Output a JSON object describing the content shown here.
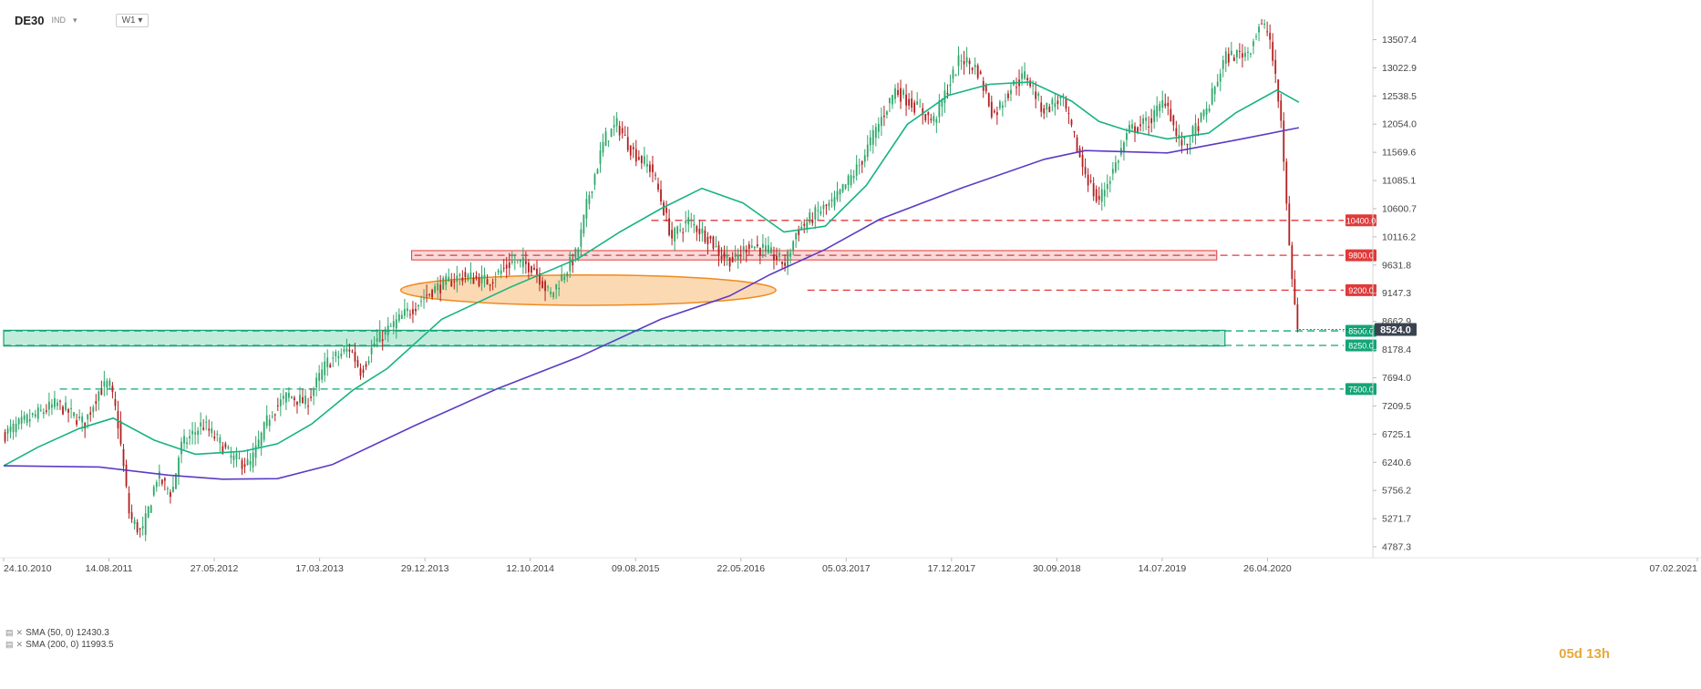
{
  "toolbar": {
    "symbol": "DE30",
    "symbol_type": "IND",
    "timeframe": "W1"
  },
  "legend": {
    "sma50_label": "SMA (50, 0) 12430.3",
    "sma200_label": "SMA (200, 0) 11993.5"
  },
  "countdown": "05d 13h",
  "colors": {
    "bull": "#2fa76a",
    "bear": "#b31f1f",
    "sma50": "#17b384",
    "sma200": "#5b3bc4",
    "resistance": "#e03a3a",
    "support": "#13a576",
    "zone_red_fill": "#f6c5c5",
    "zone_green_fill": "#b6e7d4",
    "ellipse_fill": "#f7b975",
    "ellipse_stroke": "#ef8a1e",
    "price_label": "#3b4350"
  },
  "chart_data": {
    "type": "candlestick",
    "title": "DE30",
    "timeframe": "W1",
    "x_range": [
      "24.10.2010",
      "07.02.2021"
    ],
    "x_ticks": [
      "24.10.2010",
      "14.08.2011",
      "27.05.2012",
      "17.03.2013",
      "29.12.2013",
      "12.10.2014",
      "09.08.2015",
      "22.05.2016",
      "05.03.2017",
      "17.12.2017",
      "30.09.2018",
      "14.07.2019",
      "26.04.2020",
      "07.02.2021"
    ],
    "y_range": [
      4787.3,
      13750
    ],
    "y_ticks": [
      13507.4,
      13022.9,
      12538.5,
      12054.0,
      11569.6,
      11085.1,
      10600.7,
      10116.2,
      9631.8,
      9147.3,
      8662.9,
      8178.4,
      7694.0,
      7209.5,
      6725.1,
      6240.6,
      5756.2,
      5271.7,
      4787.3
    ],
    "last_price": "8524.0",
    "price_path": [
      {
        "t": 0.0,
        "p": 6700
      },
      {
        "t": 0.02,
        "p": 7000
      },
      {
        "t": 0.04,
        "p": 7250
      },
      {
        "t": 0.06,
        "p": 6900
      },
      {
        "t": 0.07,
        "p": 7450
      },
      {
        "t": 0.078,
        "p": 7600
      },
      {
        "t": 0.084,
        "p": 7000
      },
      {
        "t": 0.093,
        "p": 5300
      },
      {
        "t": 0.102,
        "p": 5000
      },
      {
        "t": 0.113,
        "p": 6000
      },
      {
        "t": 0.124,
        "p": 5700
      },
      {
        "t": 0.13,
        "p": 6500
      },
      {
        "t": 0.146,
        "p": 6900
      },
      {
        "t": 0.158,
        "p": 6600
      },
      {
        "t": 0.168,
        "p": 6300
      },
      {
        "t": 0.181,
        "p": 6200
      },
      {
        "t": 0.196,
        "p": 7100
      },
      {
        "t": 0.209,
        "p": 7400
      },
      {
        "t": 0.222,
        "p": 7250
      },
      {
        "t": 0.237,
        "p": 7950
      },
      {
        "t": 0.254,
        "p": 8200
      },
      {
        "t": 0.262,
        "p": 7800
      },
      {
        "t": 0.272,
        "p": 8300
      },
      {
        "t": 0.29,
        "p": 8700
      },
      {
        "t": 0.314,
        "p": 9200
      },
      {
        "t": 0.335,
        "p": 9450
      },
      {
        "t": 0.355,
        "p": 9350
      },
      {
        "t": 0.373,
        "p": 9700
      },
      {
        "t": 0.388,
        "p": 9600
      },
      {
        "t": 0.4,
        "p": 9100
      },
      {
        "t": 0.412,
        "p": 9550
      },
      {
        "t": 0.42,
        "p": 9850
      },
      {
        "t": 0.428,
        "p": 10800
      },
      {
        "t": 0.44,
        "p": 11800
      },
      {
        "t": 0.449,
        "p": 12050
      },
      {
        "t": 0.46,
        "p": 11600
      },
      {
        "t": 0.475,
        "p": 11250
      },
      {
        "t": 0.489,
        "p": 10100
      },
      {
        "t": 0.501,
        "p": 10400
      },
      {
        "t": 0.516,
        "p": 10100
      },
      {
        "t": 0.525,
        "p": 9800
      },
      {
        "t": 0.535,
        "p": 9700
      },
      {
        "t": 0.545,
        "p": 10000
      },
      {
        "t": 0.556,
        "p": 9900
      },
      {
        "t": 0.572,
        "p": 9650
      },
      {
        "t": 0.58,
        "p": 10200
      },
      {
        "t": 0.596,
        "p": 10550
      },
      {
        "t": 0.607,
        "p": 10700
      },
      {
        "t": 0.626,
        "p": 11350
      },
      {
        "t": 0.64,
        "p": 12050
      },
      {
        "t": 0.652,
        "p": 12650
      },
      {
        "t": 0.665,
        "p": 12400
      },
      {
        "t": 0.68,
        "p": 12100
      },
      {
        "t": 0.7,
        "p": 13200
      },
      {
        "t": 0.712,
        "p": 13000
      },
      {
        "t": 0.724,
        "p": 12200
      },
      {
        "t": 0.737,
        "p": 12700
      },
      {
        "t": 0.748,
        "p": 12900
      },
      {
        "t": 0.76,
        "p": 12300
      },
      {
        "t": 0.774,
        "p": 12500
      },
      {
        "t": 0.788,
        "p": 11400
      },
      {
        "t": 0.8,
        "p": 10700
      },
      {
        "t": 0.812,
        "p": 11300
      },
      {
        "t": 0.823,
        "p": 11950
      },
      {
        "t": 0.838,
        "p": 12100
      },
      {
        "t": 0.85,
        "p": 12500
      },
      {
        "t": 0.858,
        "p": 11800
      },
      {
        "t": 0.865,
        "p": 11700
      },
      {
        "t": 0.872,
        "p": 12000
      },
      {
        "t": 0.88,
        "p": 12300
      },
      {
        "t": 0.893,
        "p": 13200
      },
      {
        "t": 0.91,
        "p": 13300
      },
      {
        "t": 0.918,
        "p": 13750
      },
      {
        "t": 0.925,
        "p": 13650
      },
      {
        "t": 0.934,
        "p": 12100
      },
      {
        "t": 0.941,
        "p": 9600
      },
      {
        "t": 0.946,
        "p": 8524
      }
    ],
    "series": [
      {
        "name": "SMA (50, 0) 12430.3",
        "points": [
          {
            "t": 0.0,
            "p": 6180
          },
          {
            "t": 0.025,
            "p": 6500
          },
          {
            "t": 0.055,
            "p": 6820
          },
          {
            "t": 0.08,
            "p": 7000
          },
          {
            "t": 0.11,
            "p": 6620
          },
          {
            "t": 0.14,
            "p": 6380
          },
          {
            "t": 0.175,
            "p": 6430
          },
          {
            "t": 0.2,
            "p": 6560
          },
          {
            "t": 0.225,
            "p": 6900
          },
          {
            "t": 0.255,
            "p": 7480
          },
          {
            "t": 0.28,
            "p": 7850
          },
          {
            "t": 0.32,
            "p": 8700
          },
          {
            "t": 0.37,
            "p": 9250
          },
          {
            "t": 0.42,
            "p": 9750
          },
          {
            "t": 0.45,
            "p": 10200
          },
          {
            "t": 0.48,
            "p": 10600
          },
          {
            "t": 0.51,
            "p": 10950
          },
          {
            "t": 0.54,
            "p": 10700
          },
          {
            "t": 0.57,
            "p": 10200
          },
          {
            "t": 0.6,
            "p": 10300
          },
          {
            "t": 0.63,
            "p": 11000
          },
          {
            "t": 0.66,
            "p": 12050
          },
          {
            "t": 0.69,
            "p": 12550
          },
          {
            "t": 0.72,
            "p": 12740
          },
          {
            "t": 0.75,
            "p": 12780
          },
          {
            "t": 0.78,
            "p": 12450
          },
          {
            "t": 0.8,
            "p": 12100
          },
          {
            "t": 0.82,
            "p": 11950
          },
          {
            "t": 0.85,
            "p": 11800
          },
          {
            "t": 0.88,
            "p": 11900
          },
          {
            "t": 0.9,
            "p": 12250
          },
          {
            "t": 0.93,
            "p": 12640
          },
          {
            "t": 0.946,
            "p": 12430
          }
        ]
      },
      {
        "name": "SMA (200, 0) 11993.5",
        "points": [
          {
            "t": 0.0,
            "p": 6180
          },
          {
            "t": 0.07,
            "p": 6160
          },
          {
            "t": 0.12,
            "p": 6020
          },
          {
            "t": 0.16,
            "p": 5950
          },
          {
            "t": 0.2,
            "p": 5960
          },
          {
            "t": 0.24,
            "p": 6200
          },
          {
            "t": 0.3,
            "p": 6870
          },
          {
            "t": 0.36,
            "p": 7500
          },
          {
            "t": 0.42,
            "p": 8050
          },
          {
            "t": 0.48,
            "p": 8700
          },
          {
            "t": 0.53,
            "p": 9100
          },
          {
            "t": 0.56,
            "p": 9470
          },
          {
            "t": 0.6,
            "p": 9900
          },
          {
            "t": 0.64,
            "p": 10420
          },
          {
            "t": 0.7,
            "p": 10960
          },
          {
            "t": 0.76,
            "p": 11450
          },
          {
            "t": 0.79,
            "p": 11600
          },
          {
            "t": 0.85,
            "p": 11560
          },
          {
            "t": 0.9,
            "p": 11780
          },
          {
            "t": 0.946,
            "p": 11993
          }
        ]
      }
    ],
    "levels": [
      {
        "price": 10400,
        "label": "10400.0",
        "kind": "resistance"
      },
      {
        "price": 9800,
        "label": "9800.0",
        "kind": "resistance"
      },
      {
        "price": 9200,
        "label": "9200.0",
        "kind": "resistance"
      },
      {
        "price": 8500,
        "label": "8500.0",
        "kind": "support"
      },
      {
        "price": 8250,
        "label": "8250.0",
        "kind": "support"
      },
      {
        "price": 7500,
        "label": "7500.0",
        "kind": "support"
      }
    ],
    "zones": [
      {
        "kind": "resistance",
        "t_start": 0.298,
        "t_end": 0.886,
        "p_low": 9720,
        "p_high": 9880
      },
      {
        "kind": "support",
        "t_start": 0.0,
        "t_end": 0.892,
        "p_low": 8240,
        "p_high": 8510
      }
    ],
    "annotations": [
      {
        "kind": "ellipse",
        "t_center": 0.427,
        "p_center": 9200,
        "t_radius": 0.137,
        "p_radius": 260
      }
    ]
  }
}
